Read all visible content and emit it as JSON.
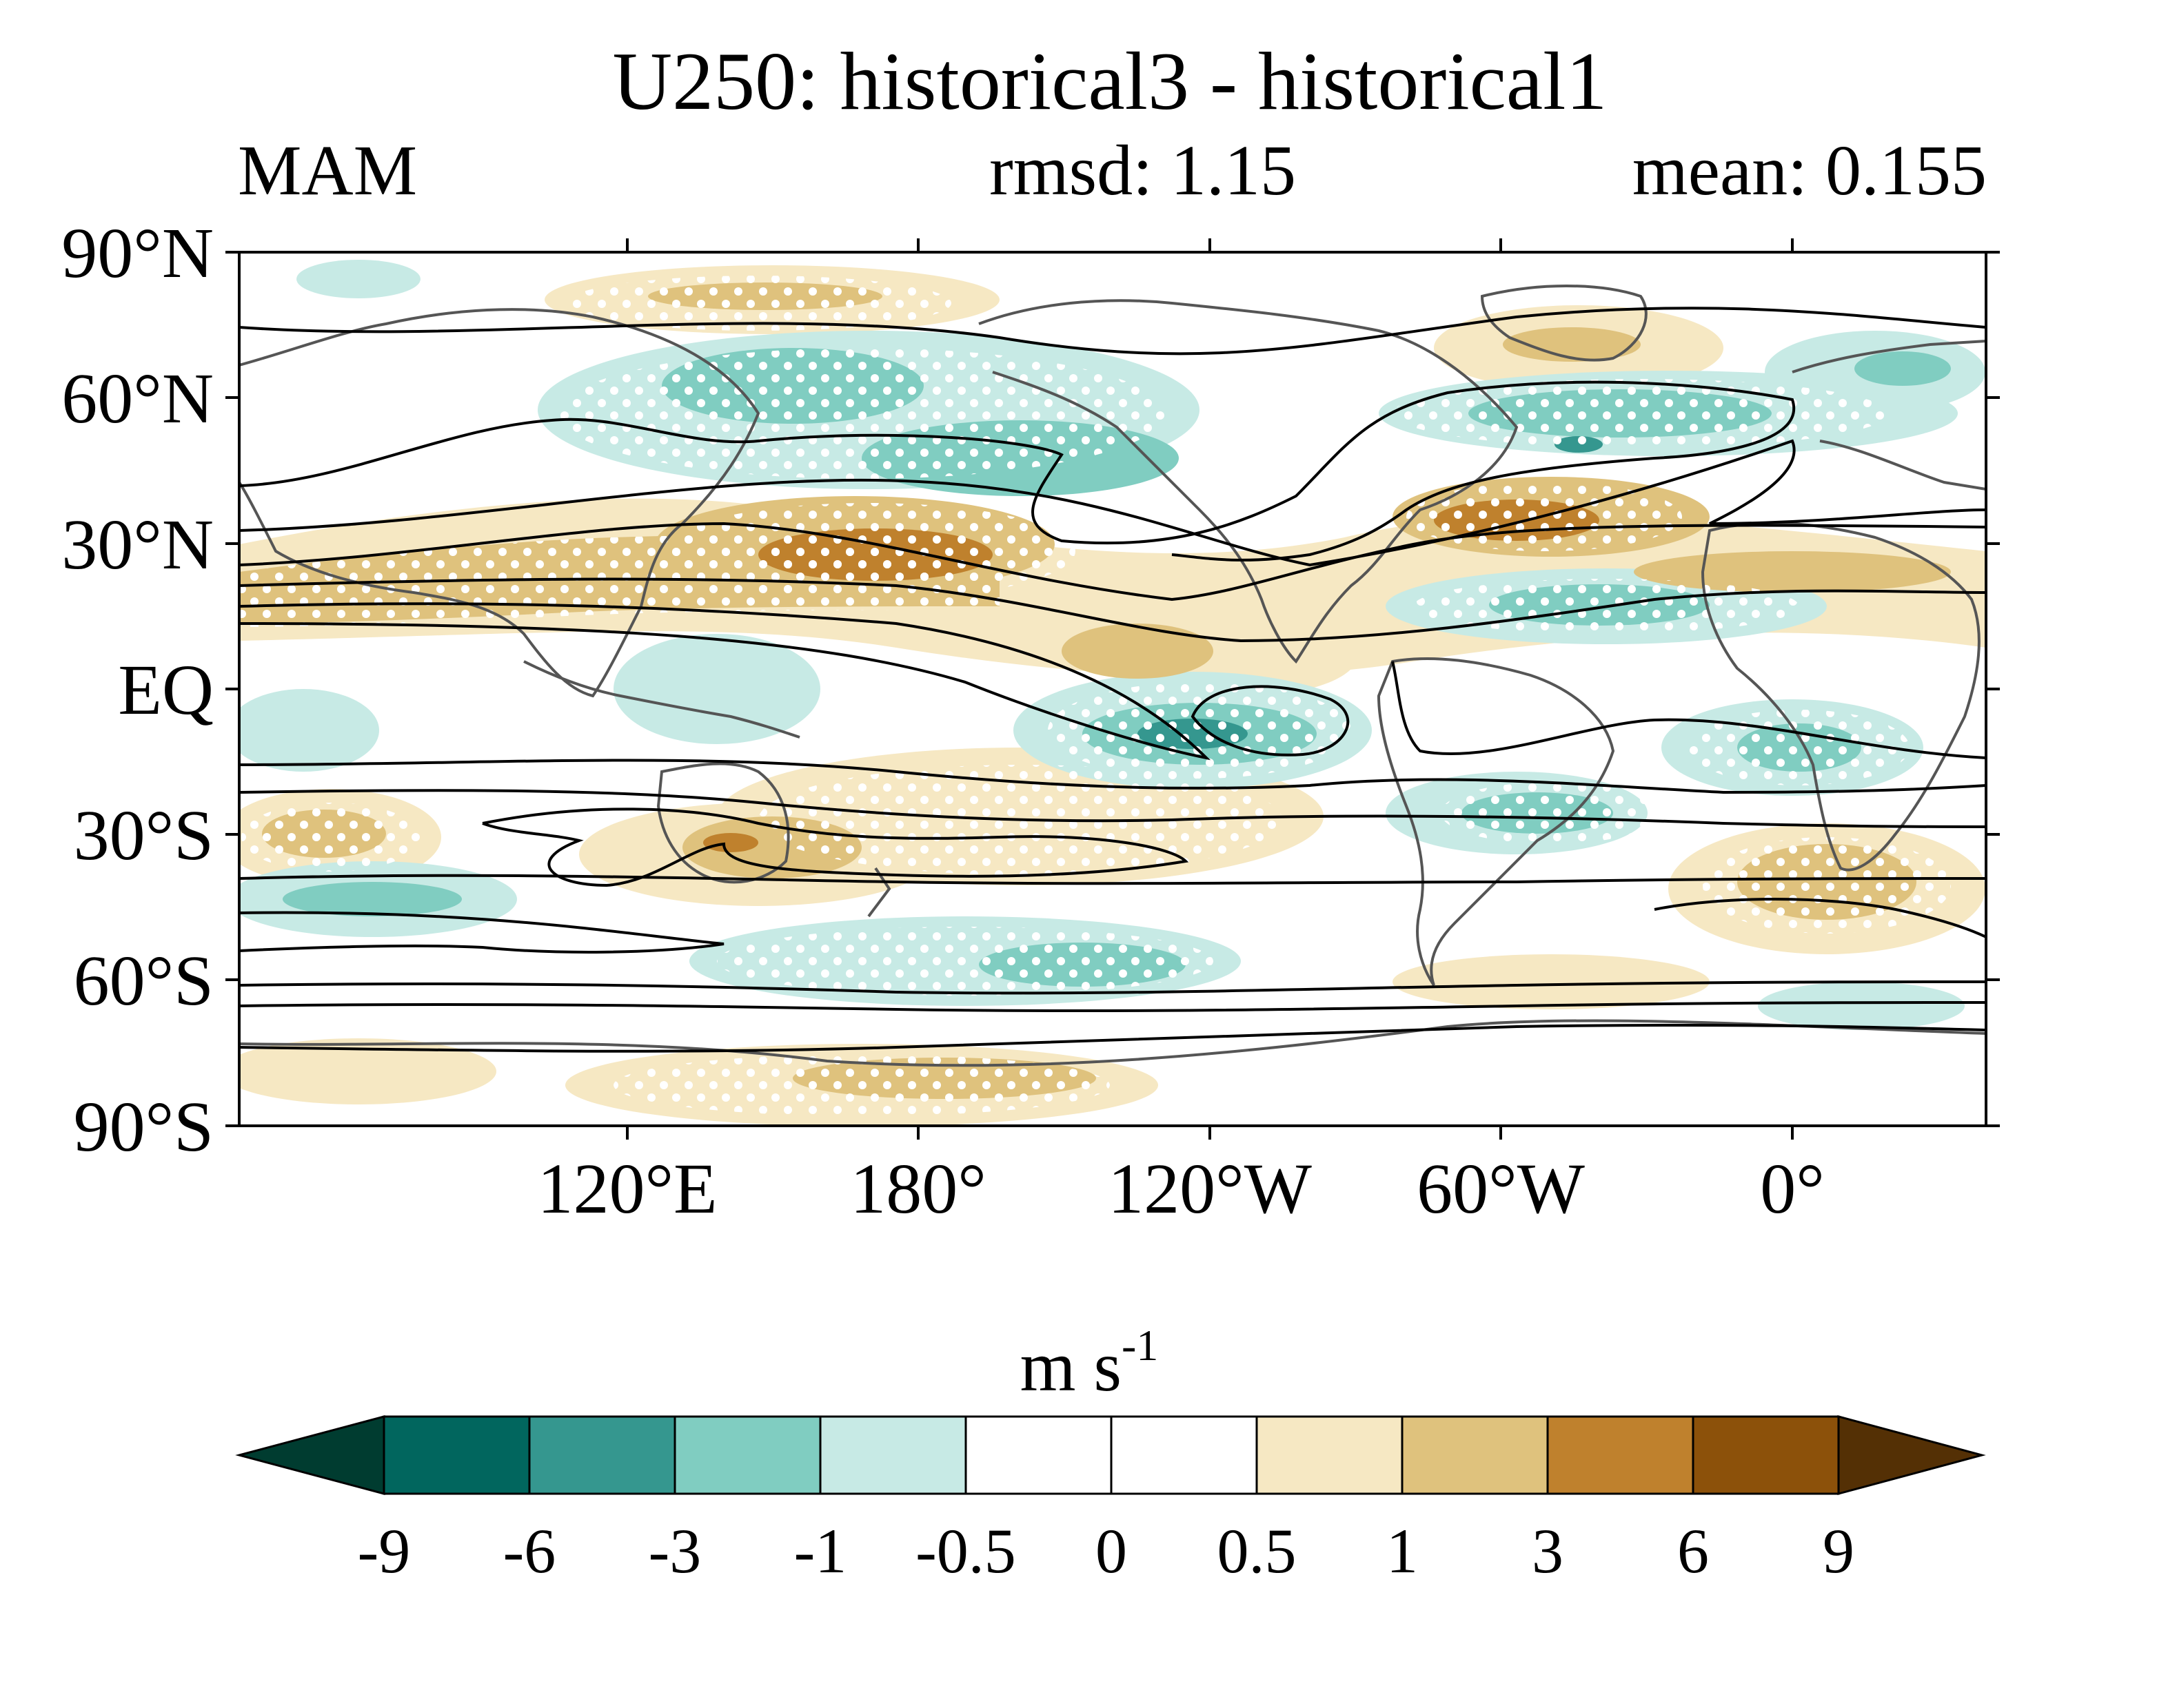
{
  "title": "U250: historical3 - historical1",
  "season": "MAM",
  "rmsd_text": "rmsd: 1.15",
  "mean_text": "mean: 0.155",
  "lat_labels": [
    "90°N",
    "60°N",
    "30°N",
    "EQ",
    "30°S",
    "60°S",
    "90°S"
  ],
  "lon_labels": [
    "120°E",
    "180°",
    "120°W",
    "60°W",
    "0°"
  ],
  "colorbar": {
    "unit_base": "m s",
    "unit_exp": "-1",
    "levels": [
      "-9",
      "-6",
      "-3",
      "-1",
      "-0.5",
      "0",
      "0.5",
      "1",
      "3",
      "6",
      "9"
    ],
    "colors": [
      "#003c30",
      "#01665e",
      "#35978f",
      "#80cdc1",
      "#c7eae5",
      "#ffffff",
      "#ffffff",
      "#f6e8c3",
      "#dfc27d",
      "#bf812d",
      "#8c510a",
      "#543005"
    ]
  },
  "map_colors": {
    "land_outline": "#555555",
    "contour": "#000000",
    "stipple": "#ffffff"
  }
}
